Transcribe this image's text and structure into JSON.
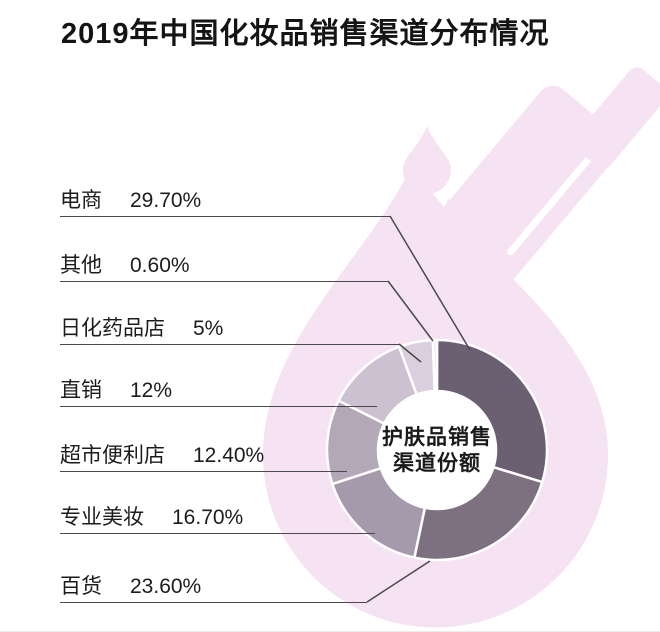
{
  "title": "2019年中国化妆品销售渠道分布情况",
  "chart_data": {
    "type": "pie",
    "subtype": "donut",
    "title": "2019年中国化妆品销售渠道分布情况",
    "center_label": "护肤品销售渠道份额",
    "center_label_lines": [
      "护肤品销售",
      "渠道份额"
    ],
    "unit": "%",
    "legend_position": "left",
    "grid": false,
    "channels": [
      {
        "label": "电商",
        "value": 29.7,
        "value_text": "29.70%",
        "color": "#6b5f72"
      },
      {
        "label": "其他",
        "value": 0.6,
        "value_text": "0.60%",
        "color": "#f0eaf2"
      },
      {
        "label": "日化药品店",
        "value": 5,
        "value_text": "5%",
        "color": "#d9cfdf"
      },
      {
        "label": "直销",
        "value": 12,
        "value_text": "12%",
        "color": "#cbc1d1"
      },
      {
        "label": "超市便利店",
        "value": 12.4,
        "value_text": "12.40%",
        "color": "#b2a8b7"
      },
      {
        "label": "专业美妆",
        "value": 16.7,
        "value_text": "16.70%",
        "color": "#a59aab"
      },
      {
        "label": "百货",
        "value": 23.6,
        "value_text": "23.60%",
        "color": "#7d7181"
      }
    ],
    "draw_order_clockwise_from_top": [
      0,
      6,
      5,
      4,
      3,
      2,
      1
    ]
  },
  "style": {
    "watermark_color": "#f5e2f2",
    "leader_line_color": "#4a4a4a",
    "segment_gap_color": "#ffffff",
    "text_color": "#1c1c1c"
  }
}
